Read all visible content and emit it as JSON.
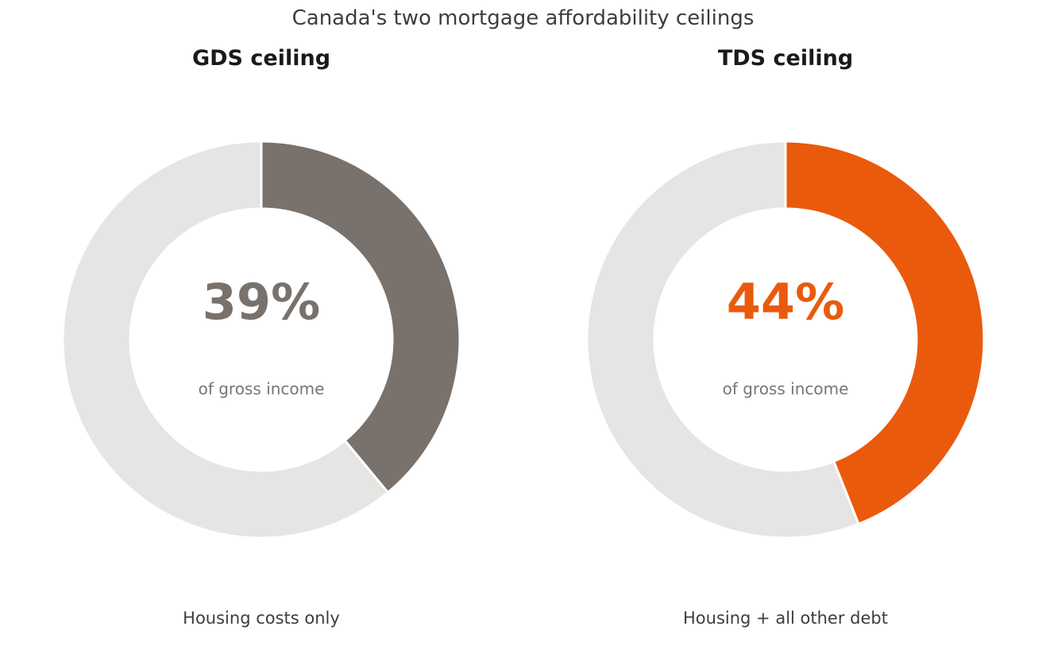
{
  "title": "Canada's two mortgage affordability ceilings",
  "chart_data": [
    {
      "type": "pie",
      "title": "GDS ceiling",
      "value_label": "39%",
      "subtitle": "of gross income",
      "caption": "Housing costs only",
      "slices": [
        {
          "value": 39,
          "color": "#79716b"
        },
        {
          "value": 61,
          "color": "#e6e5e3"
        }
      ]
    },
    {
      "type": "pie",
      "title": "TDS ceiling",
      "value_label": "44%",
      "subtitle": "of gross income",
      "caption": "Housing + all other debt",
      "slices": [
        {
          "value": 44,
          "color": "#ea5a0c"
        },
        {
          "value": 56,
          "color": "#e6e5e3"
        }
      ]
    }
  ]
}
